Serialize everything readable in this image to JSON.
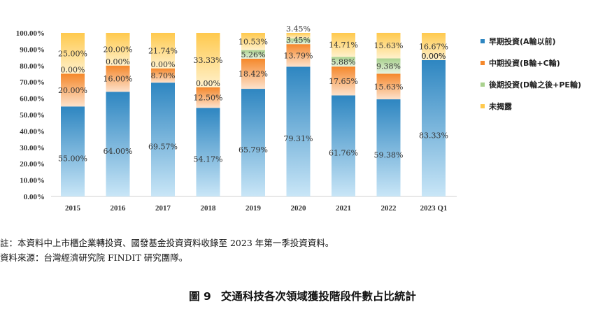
{
  "chart_data": {
    "type": "bar",
    "stacked": true,
    "percent": true,
    "categories": [
      "2015",
      "2016",
      "2017",
      "2018",
      "2019",
      "2020",
      "2021",
      "2022",
      "2023 Q1"
    ],
    "ylim": [
      0,
      100
    ],
    "yticks": [
      "0.00%",
      "10.00%",
      "20.00%",
      "30.00%",
      "40.00%",
      "50.00%",
      "60.00%",
      "70.00%",
      "80.00%",
      "90.00%",
      "100.00%"
    ],
    "legend_position": "right",
    "grid": false,
    "series": [
      {
        "name": "早期投資(A輪以前)",
        "color_top": "#2e86c1",
        "color_bottom": "#c9e6f7",
        "values": [
          55.0,
          64.0,
          69.57,
          54.17,
          65.79,
          79.31,
          61.76,
          59.38,
          83.33
        ],
        "labels": [
          "55.00%",
          "64.00%",
          "69.57%",
          "54.17%",
          "65.79%",
          "79.31%",
          "61.76%",
          "59.38%",
          "83.33%"
        ]
      },
      {
        "name": "中期投資(B輪+C輪)",
        "color_top": "#f5882b",
        "color_bottom": "#fde2cc",
        "values": [
          20.0,
          16.0,
          8.7,
          12.5,
          18.42,
          13.79,
          17.65,
          15.63,
          0.0
        ],
        "labels": [
          "20.00%",
          "16.00%",
          "8.70%",
          "12.50%",
          "18.42%",
          "13.79%",
          "17.65%",
          "15.63%",
          "0.00%"
        ]
      },
      {
        "name": "後期投資(D輪之後+PE輪)",
        "color_top": "#a9d18e",
        "color_bottom": "#e8f3df",
        "values": [
          0.0,
          0.0,
          0.0,
          0.0,
          5.26,
          3.45,
          5.88,
          9.38,
          0.0
        ],
        "labels": [
          "0.00%",
          "0.00%",
          "0.00%",
          "0.00%",
          "5.26%",
          "3.45%",
          "5.88%",
          "9.38%",
          "0.00%"
        ]
      },
      {
        "name": "未揭露",
        "color_top": "#ffc94d",
        "color_bottom": "#fff1cc",
        "values": [
          25.0,
          20.0,
          21.74,
          33.33,
          10.53,
          3.45,
          14.71,
          15.63,
          16.67
        ],
        "labels": [
          "25.00%",
          "20.00%",
          "21.74%",
          "33.33%",
          "10.53%",
          "3.45%",
          "14.71%",
          "15.63%",
          "16.67%"
        ]
      }
    ]
  },
  "notes": {
    "line1": "註：本資料中上市櫃企業轉投資、國發基金投資資料收錄至 2023 年第一季投資資料。",
    "line2": "資料來源：台灣經濟研究院 FINDIT 研究團隊。"
  },
  "caption": {
    "figure_number": "圖 9",
    "title": "交通科技各次領域獲投階段件數占比統計"
  }
}
